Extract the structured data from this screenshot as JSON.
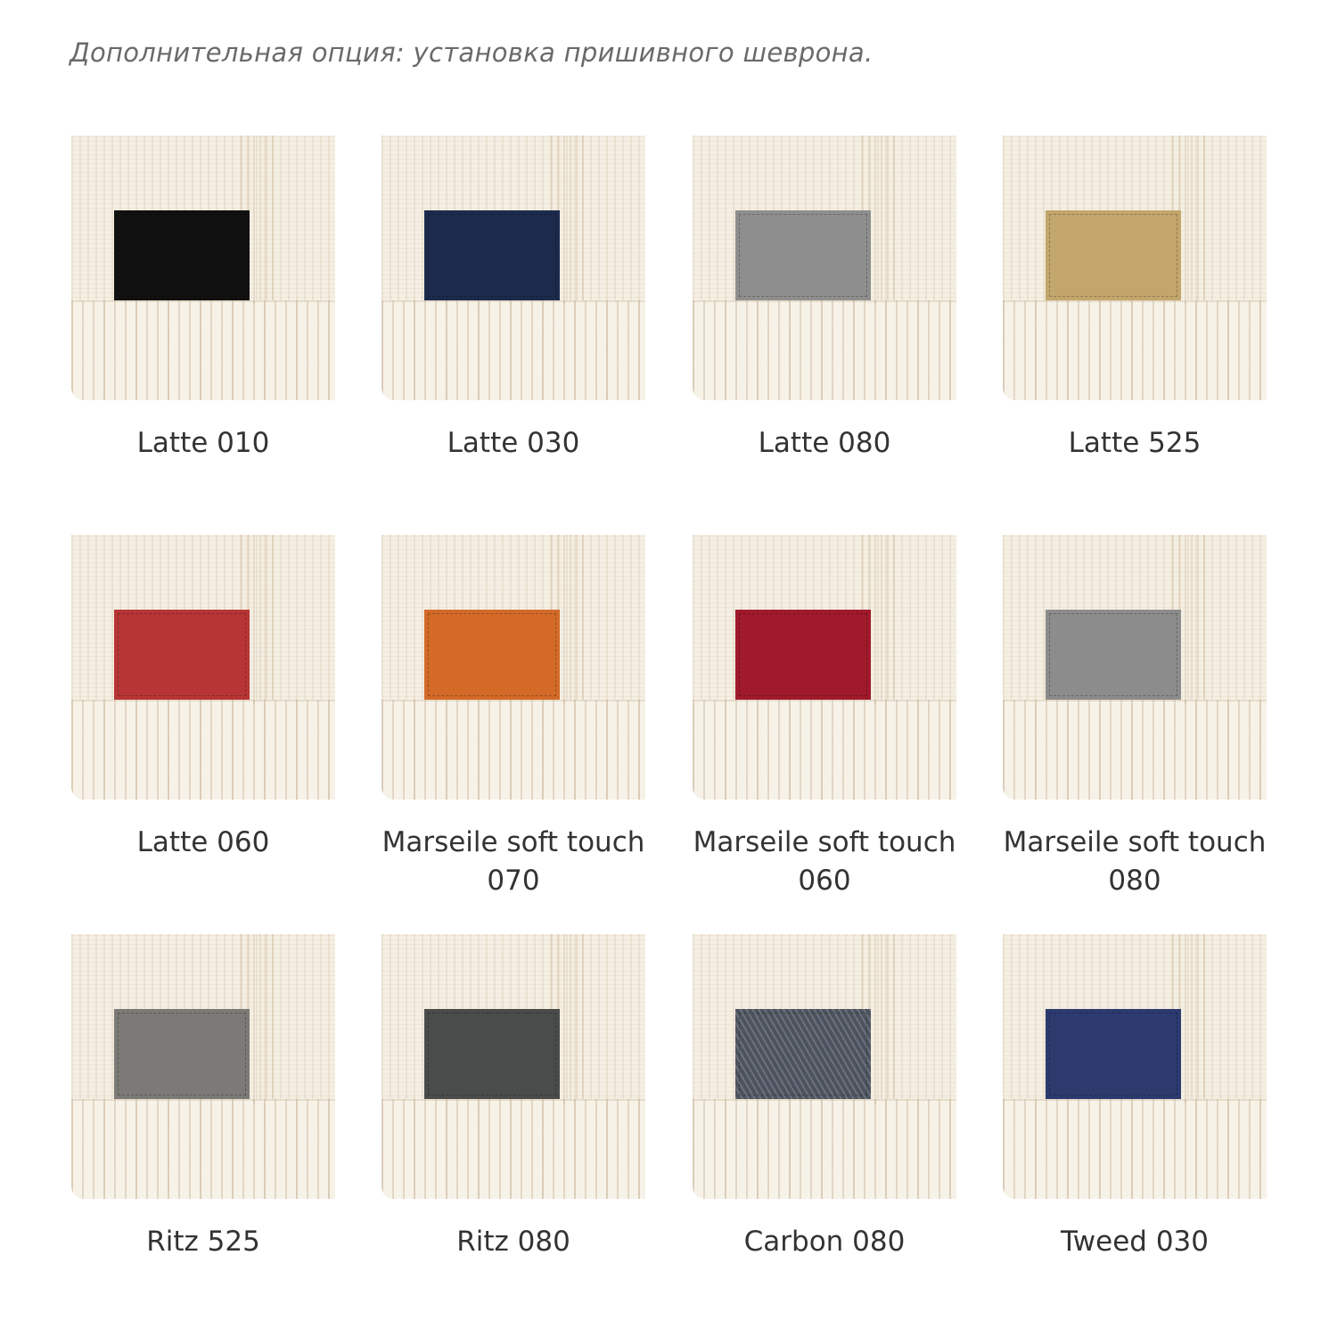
{
  "title": "Дополнительная опция: установка пришивного шеврона.",
  "swatches": [
    {
      "label": "Latte 010",
      "color": "#111111"
    },
    {
      "label": "Latte 030",
      "color": "#1c2a4c"
    },
    {
      "label": "Latte 080",
      "color": "#8e8e8e"
    },
    {
      "label": "Latte 525",
      "color": "#c3a66c"
    },
    {
      "label": "Latte 060",
      "color": "#b83535"
    },
    {
      "label": "Marseile soft touch 070",
      "color": "#d36a27"
    },
    {
      "label": "Marseile soft touch 060",
      "color": "#a01a2b"
    },
    {
      "label": "Marseile soft touch 080",
      "color": "#8c8c8c"
    },
    {
      "label": "Ritz 525",
      "color": "#7b7a76"
    },
    {
      "label": "Ritz 080",
      "color": "#4a4c4b"
    },
    {
      "label": "Carbon 080",
      "color": "#4c525e"
    },
    {
      "label": "Tweed 030",
      "color": "#2c3a6e"
    }
  ]
}
